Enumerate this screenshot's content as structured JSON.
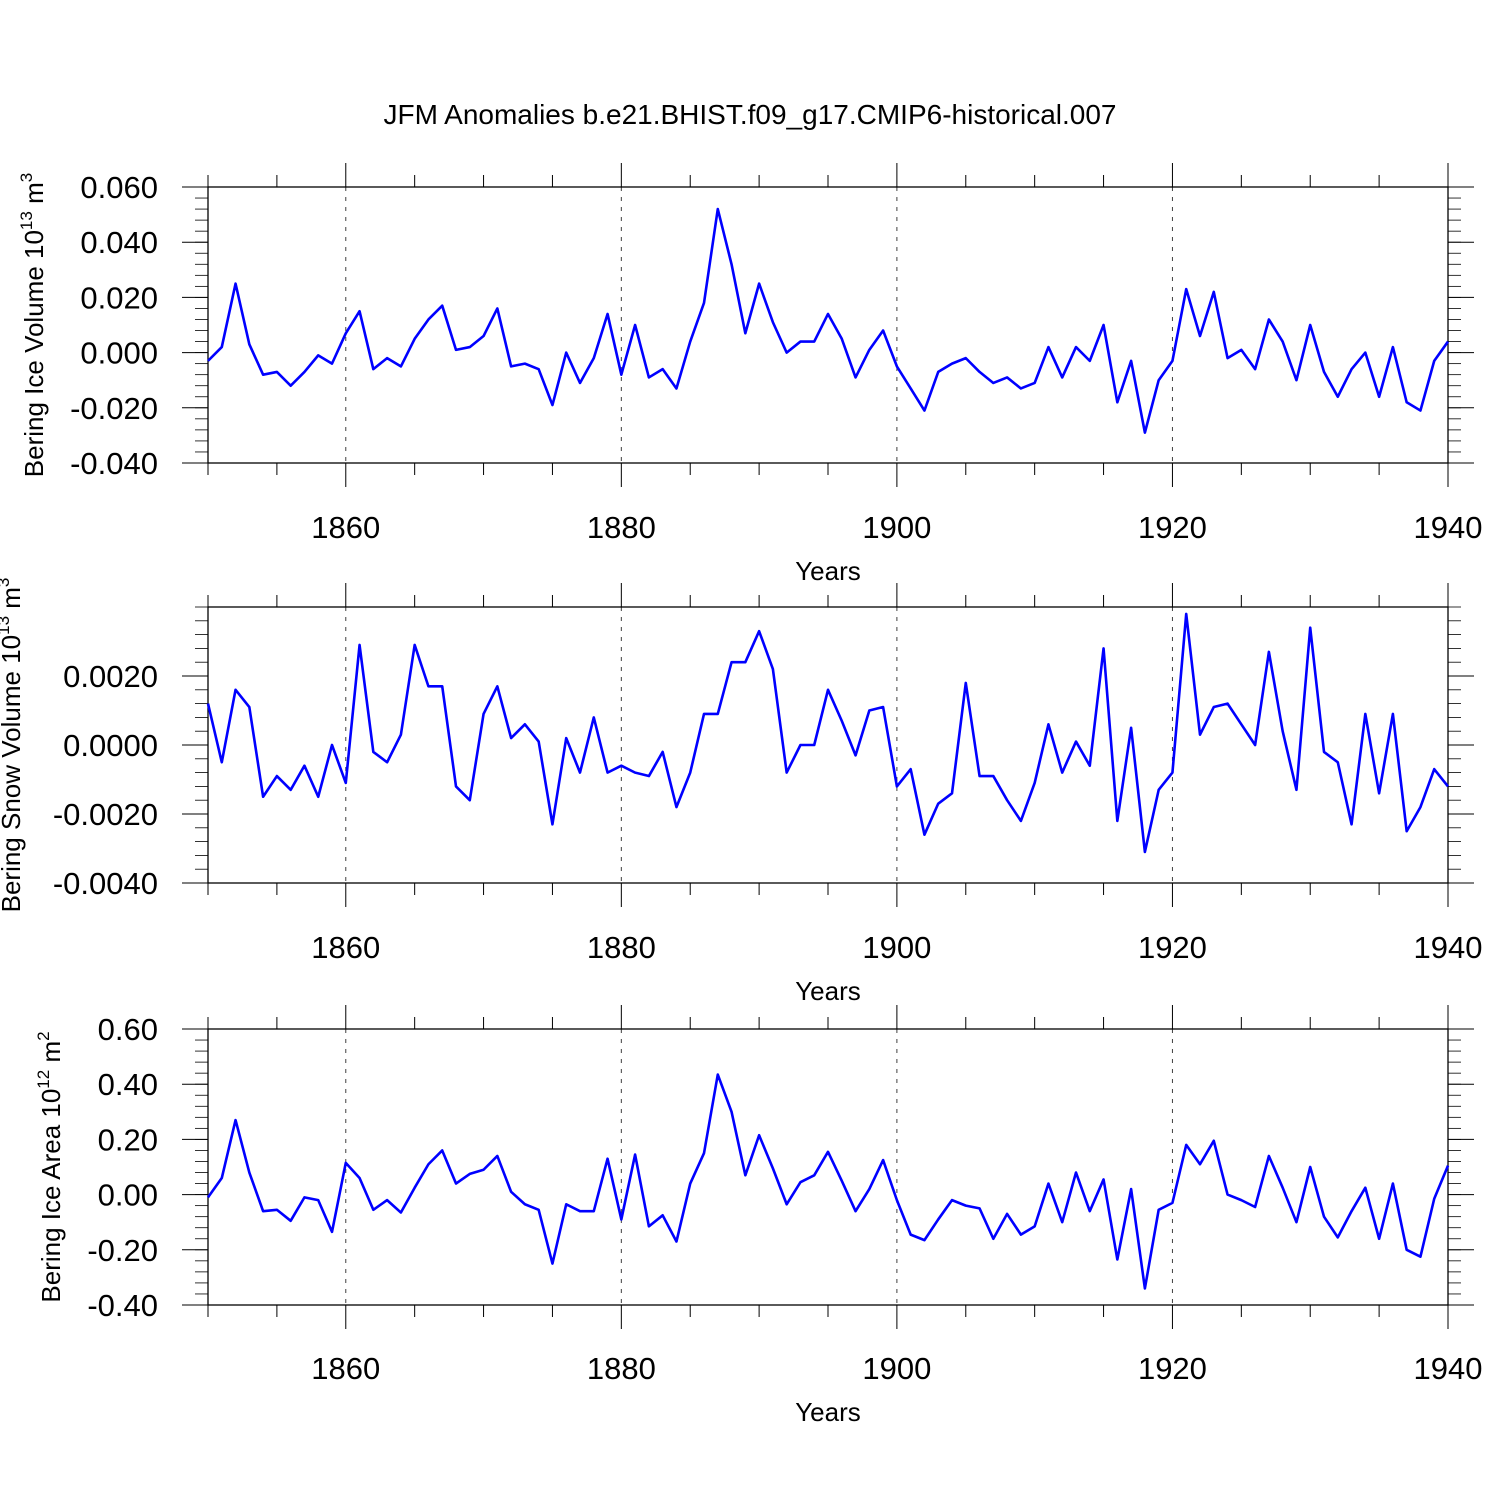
{
  "title": "JFM Anomalies b.e21.BHIST.f09_g17.CMIP6-historical.007",
  "colors": {
    "series": "#0000ff",
    "axes": "#000000",
    "grid": "#000000",
    "background": "#ffffff"
  },
  "chart_data": [
    {
      "type": "line",
      "id": "ice-volume",
      "ylabel": {
        "text": "Bering Ice Volume 10",
        "sup1": "13",
        "unit": " m",
        "sup2": "3"
      },
      "xlabel": "Years",
      "xlim": [
        1850,
        1940
      ],
      "ylim": [
        -0.04,
        0.06
      ],
      "xticks": [
        1860,
        1880,
        1900,
        1920,
        1940
      ],
      "yticks": [
        -0.04,
        -0.02,
        0.0,
        0.02,
        0.04,
        0.06
      ],
      "ytick_labels": [
        "-0.040",
        "-0.020",
        "0.000",
        "0.020",
        "0.040",
        "0.060"
      ],
      "vgrid": [
        1860,
        1880,
        1900,
        1920
      ],
      "x_start": 1850,
      "series": [
        {
          "name": "Bering Ice Volume",
          "values": [
            -0.003,
            0.002,
            0.025,
            0.003,
            -0.008,
            -0.007,
            -0.012,
            -0.007,
            -0.001,
            -0.004,
            0.007,
            0.015,
            -0.006,
            -0.002,
            -0.005,
            0.005,
            0.012,
            0.017,
            0.001,
            0.002,
            0.006,
            0.016,
            -0.005,
            -0.004,
            -0.006,
            -0.019,
            0.0,
            -0.011,
            -0.002,
            0.014,
            -0.008,
            0.01,
            -0.009,
            -0.006,
            -0.013,
            0.004,
            0.018,
            0.052,
            0.032,
            0.007,
            0.025,
            0.011,
            0.0,
            0.004,
            0.004,
            0.014,
            0.005,
            -0.009,
            0.001,
            0.008,
            -0.005,
            -0.013,
            -0.021,
            -0.007,
            -0.004,
            -0.002,
            -0.007,
            -0.011,
            -0.009,
            -0.013,
            -0.011,
            0.002,
            -0.009,
            0.002,
            -0.003,
            0.01,
            -0.018,
            -0.003,
            -0.029,
            -0.01,
            -0.003,
            0.023,
            0.006,
            0.022,
            -0.002,
            0.001,
            -0.006,
            0.012,
            0.004,
            -0.01,
            0.01,
            -0.007,
            -0.016,
            -0.006,
            0.0,
            -0.016,
            0.002,
            -0.018,
            -0.021,
            -0.003,
            0.004
          ]
        }
      ]
    },
    {
      "type": "line",
      "id": "snow-volume",
      "ylabel": {
        "text": "Bering Snow Volume 10",
        "sup1": "13",
        "unit": " m",
        "sup2": "3"
      },
      "xlabel": "Years",
      "xlim": [
        1850,
        1940
      ],
      "ylim": [
        -0.004,
        0.004
      ],
      "xticks": [
        1860,
        1880,
        1900,
        1920,
        1940
      ],
      "yticks": [
        -0.004,
        -0.002,
        0.0,
        0.002
      ],
      "ytick_labels": [
        "-0.0040",
        "-0.0020",
        "0.0000",
        "0.0020"
      ],
      "vgrid": [
        1860,
        1880,
        1900,
        1920
      ],
      "x_start": 1850,
      "series": [
        {
          "name": "Bering Snow Volume",
          "values": [
            0.0012,
            -0.0005,
            0.0016,
            0.0011,
            -0.0015,
            -0.0009,
            -0.0013,
            -0.0006,
            -0.0015,
            0.0,
            -0.0011,
            0.0029,
            -0.0002,
            -0.0005,
            0.0003,
            0.0029,
            0.0017,
            0.0017,
            -0.0012,
            -0.0016,
            0.0009,
            0.0017,
            0.0002,
            0.0006,
            0.0001,
            -0.0023,
            0.0002,
            -0.0008,
            0.0008,
            -0.0008,
            -0.0006,
            -0.0008,
            -0.0009,
            -0.0002,
            -0.0018,
            -0.0008,
            0.0009,
            0.0009,
            0.0024,
            0.0024,
            0.0033,
            0.0022,
            -0.0008,
            0.0,
            0.0,
            0.0016,
            0.0007,
            -0.0003,
            0.001,
            0.0011,
            -0.0012,
            -0.0007,
            -0.0026,
            -0.0017,
            -0.0014,
            0.0018,
            -0.0009,
            -0.0009,
            -0.0016,
            -0.0022,
            -0.0011,
            0.0006,
            -0.0008,
            0.0001,
            -0.0006,
            0.0028,
            -0.0022,
            0.0005,
            -0.0031,
            -0.0013,
            -0.0008,
            0.0038,
            0.0003,
            0.0011,
            0.0012,
            0.0006,
            0.0,
            0.0027,
            0.0004,
            -0.0013,
            0.0034,
            -0.0002,
            -0.0005,
            -0.0023,
            0.0009,
            -0.0014,
            0.0009,
            -0.0025,
            -0.0018,
            -0.0007,
            -0.0012
          ]
        }
      ]
    },
    {
      "type": "line",
      "id": "ice-area",
      "ylabel": {
        "text": "Bering Ice Area 10",
        "sup1": "12",
        "unit": " m",
        "sup2": "2"
      },
      "xlabel": "Years",
      "xlim": [
        1850,
        1940
      ],
      "ylim": [
        -0.4,
        0.6
      ],
      "xticks": [
        1860,
        1880,
        1900,
        1920,
        1940
      ],
      "yticks": [
        -0.4,
        -0.2,
        0.0,
        0.2,
        0.4,
        0.6
      ],
      "ytick_labels": [
        "-0.40",
        "-0.20",
        "0.00",
        "0.20",
        "0.40",
        "0.60"
      ],
      "vgrid": [
        1860,
        1880,
        1900,
        1920
      ],
      "x_start": 1850,
      "series": [
        {
          "name": "Bering Ice Area",
          "values": [
            -0.01,
            0.06,
            0.27,
            0.08,
            -0.06,
            -0.055,
            -0.095,
            -0.01,
            -0.02,
            -0.135,
            0.115,
            0.06,
            -0.055,
            -0.02,
            -0.065,
            0.025,
            0.11,
            0.16,
            0.04,
            0.075,
            0.09,
            0.14,
            0.01,
            -0.035,
            -0.055,
            -0.25,
            -0.035,
            -0.06,
            -0.06,
            0.13,
            -0.09,
            0.145,
            -0.115,
            -0.075,
            -0.17,
            0.04,
            0.15,
            0.435,
            0.3,
            0.07,
            0.215,
            0.095,
            -0.035,
            0.045,
            0.07,
            0.155,
            0.05,
            -0.06,
            0.02,
            0.125,
            -0.02,
            -0.145,
            -0.165,
            -0.09,
            -0.02,
            -0.04,
            -0.05,
            -0.16,
            -0.07,
            -0.145,
            -0.115,
            0.04,
            -0.1,
            0.08,
            -0.06,
            0.055,
            -0.235,
            0.02,
            -0.34,
            -0.055,
            -0.03,
            0.18,
            0.11,
            0.195,
            0.0,
            -0.02,
            -0.045,
            0.14,
            0.025,
            -0.1,
            0.1,
            -0.08,
            -0.155,
            -0.06,
            0.025,
            -0.16,
            0.04,
            -0.2,
            -0.225,
            -0.015,
            0.105
          ]
        }
      ]
    }
  ]
}
